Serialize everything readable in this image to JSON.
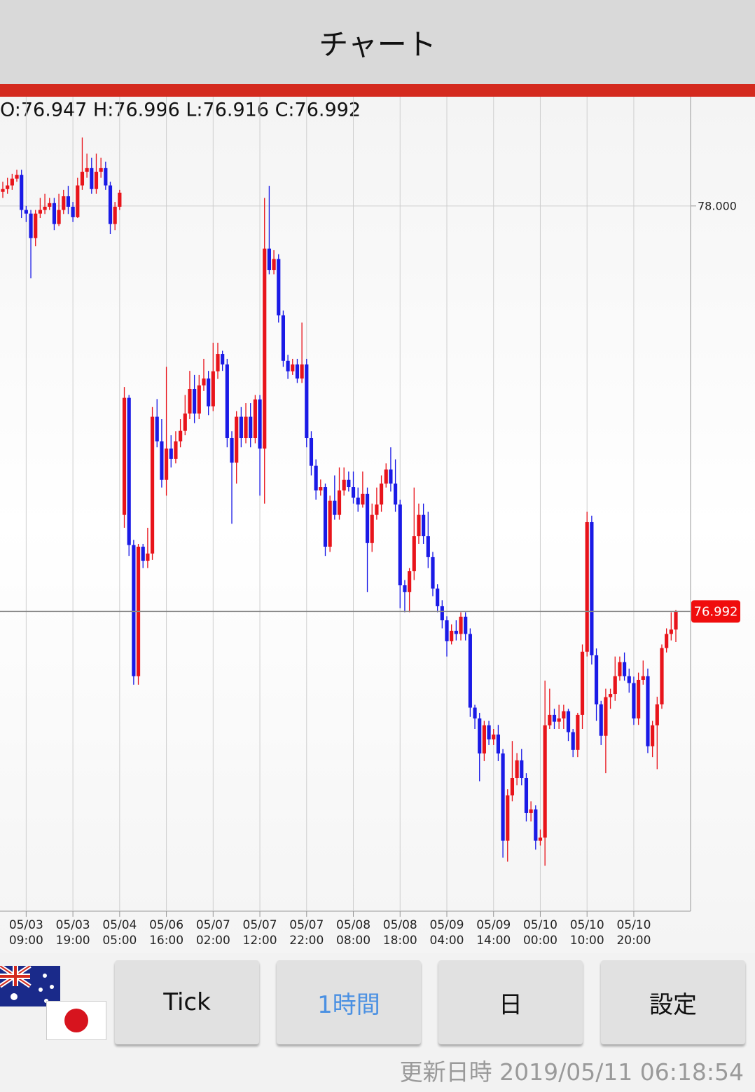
{
  "header": {
    "title": "チャート"
  },
  "chart_data": {
    "type": "candlestick",
    "ohlc_label": "O:76.947 H:76.996 L:76.916 C:76.992",
    "categories": [
      null,
      null,
      null,
      null,
      null,
      "05/03\n09:00",
      null,
      null,
      null,
      null,
      null,
      null,
      null,
      null,
      null,
      "05/03\n19:00",
      null,
      null,
      null,
      null,
      null,
      null,
      null,
      null,
      null,
      "05/04\n05:00",
      null,
      null,
      null,
      null,
      null,
      null,
      null,
      null,
      null,
      "05/06\n16:00",
      null,
      null,
      null,
      null,
      null,
      null,
      null,
      null,
      null,
      "05/07\n02:00",
      null,
      null,
      null,
      null,
      null,
      null,
      null,
      null,
      null,
      "05/07\n12:00",
      null,
      null,
      null,
      null,
      null,
      null,
      null,
      null,
      null,
      "05/07\n22:00",
      null,
      null,
      null,
      null,
      null,
      null,
      null,
      null,
      null,
      "05/08\n08:00",
      null,
      null,
      null,
      null,
      null,
      null,
      null,
      null,
      null,
      "05/08\n18:00",
      null,
      null,
      null,
      null,
      null,
      null,
      null,
      null,
      null,
      "05/09\n04:00",
      null,
      null,
      null,
      null,
      null,
      null,
      null,
      null,
      null,
      "05/09\n14:00",
      null,
      null,
      null,
      null,
      null,
      null,
      null,
      null,
      null,
      "05/10\n00:00",
      null,
      null,
      null,
      null,
      null,
      null,
      null,
      null,
      null,
      "05/10\n10:00",
      null,
      null,
      null,
      null,
      null,
      null,
      null,
      null,
      null,
      "05/10\n20:00",
      null,
      null,
      null,
      null,
      null,
      null,
      null,
      null,
      null
    ],
    "open": [
      78.035,
      78.042,
      78.051,
      78.068,
      78.077,
      77.99,
      77.981,
      77.92,
      77.981,
      77.99,
      77.998,
      78.007,
      77.955,
      77.99,
      78.024,
      77.998,
      77.972,
      78.051,
      78.085,
      78.094,
      78.042,
      78.085,
      78.094,
      78.051,
      77.955,
      77.998,
      77.232,
      77.523,
      77.157,
      76.831,
      77.153,
      77.118,
      77.136,
      77.476,
      77.415,
      77.319,
      77.397,
      77.371,
      77.415,
      77.441,
      77.484,
      77.545,
      77.484,
      77.554,
      77.571,
      77.502,
      77.589,
      77.632,
      77.606,
      77.423,
      77.362,
      77.476,
      77.423,
      77.476,
      77.423,
      77.519,
      77.397,
      77.894,
      77.841,
      77.868,
      77.728,
      77.615,
      77.589,
      77.606,
      77.571,
      77.606,
      77.423,
      77.354,
      77.293,
      77.301,
      77.153,
      77.267,
      77.232,
      77.293,
      77.319,
      77.301,
      77.275,
      77.258,
      77.284,
      77.162,
      77.232,
      77.258,
      77.31,
      77.345,
      77.31,
      77.258,
      77.057,
      77.04,
      77.092,
      77.179,
      77.232,
      77.179,
      77.127,
      77.049,
      77.005,
      76.97,
      76.918,
      76.944,
      76.936,
      76.979,
      76.936,
      76.753,
      76.726,
      76.639,
      76.709,
      76.674,
      76.686,
      76.639,
      76.422,
      76.535,
      76.578,
      76.622,
      76.578,
      76.491,
      76.5,
      76.422,
      76.43,
      76.709,
      76.735,
      76.718,
      76.726,
      76.744,
      76.692,
      76.648,
      76.735,
      76.892,
      77.214,
      76.883,
      76.761,
      76.683,
      76.779,
      76.787,
      76.831,
      76.866,
      76.831,
      76.814,
      76.726,
      76.822,
      76.831,
      76.657,
      76.709,
      76.761,
      76.901,
      76.936,
      76.947
    ],
    "high": [
      78.06,
      78.07,
      78.08,
      78.09,
      78.09,
      78.0,
      77.99,
      77.99,
      78.02,
      78.03,
      78.02,
      78.02,
      78.03,
      78.04,
      78.05,
      78.01,
      78.07,
      78.17,
      78.13,
      78.12,
      78.13,
      78.12,
      78.11,
      78.06,
      78.01,
      78.04,
      77.55,
      77.53,
      77.17,
      77.16,
      77.16,
      77.2,
      77.5,
      77.52,
      77.47,
      77.6,
      77.43,
      77.44,
      77.47,
      77.53,
      77.59,
      77.58,
      77.58,
      77.62,
      77.59,
      77.66,
      77.66,
      77.64,
      77.62,
      77.44,
      77.49,
      77.5,
      77.51,
      77.51,
      77.53,
      77.53,
      78.02,
      78.05,
      77.89,
      77.88,
      77.74,
      77.63,
      77.62,
      77.62,
      77.71,
      77.62,
      77.44,
      77.37,
      77.32,
      77.31,
      77.28,
      77.33,
      77.35,
      77.35,
      77.34,
      77.34,
      77.3,
      77.34,
      77.3,
      77.26,
      77.3,
      77.33,
      77.36,
      77.4,
      77.37,
      77.27,
      77.07,
      77.1,
      77.3,
      77.26,
      77.26,
      77.24,
      77.14,
      77.06,
      77.02,
      76.98,
      76.96,
      76.97,
      76.99,
      76.99,
      76.95,
      76.76,
      76.74,
      76.72,
      76.72,
      76.7,
      76.71,
      76.65,
      76.55,
      76.67,
      76.64,
      76.65,
      76.59,
      76.52,
      76.51,
      76.45,
      76.82,
      76.8,
      76.75,
      76.76,
      76.76,
      76.75,
      76.7,
      76.74,
      76.91,
      77.24,
      77.23,
      76.9,
      76.77,
      76.8,
      76.8,
      76.88,
      76.88,
      76.89,
      76.85,
      76.83,
      76.84,
      76.87,
      76.85,
      76.72,
      76.78,
      76.91,
      76.95,
      76.99,
      76.996
    ],
    "low": [
      78.02,
      78.03,
      78.04,
      78.06,
      77.97,
      77.96,
      77.82,
      77.9,
      77.97,
      77.98,
      77.99,
      77.94,
      77.95,
      77.98,
      77.98,
      77.96,
      77.97,
      78.04,
      78.07,
      78.03,
      78.03,
      78.07,
      78.04,
      77.93,
      77.94,
      77.99,
      77.2,
      77.13,
      76.81,
      76.81,
      77.1,
      77.1,
      77.12,
      77.4,
      77.3,
      77.28,
      77.35,
      77.36,
      77.4,
      77.43,
      77.47,
      77.46,
      77.47,
      77.54,
      77.48,
      77.49,
      77.57,
      77.59,
      77.4,
      77.21,
      77.31,
      77.4,
      77.41,
      77.4,
      77.41,
      77.28,
      77.26,
      77.83,
      77.83,
      77.71,
      77.6,
      77.57,
      77.58,
      77.56,
      77.56,
      77.4,
      77.33,
      77.27,
      77.28,
      77.13,
      77.14,
      77.22,
      77.22,
      77.28,
      77.29,
      77.26,
      77.24,
      77.25,
      77.04,
      77.14,
      77.22,
      77.24,
      77.3,
      77.29,
      77.24,
      77.0,
      76.99,
      76.99,
      77.07,
      77.16,
      77.16,
      77.1,
      77.03,
      76.99,
      76.95,
      76.88,
      76.91,
      76.92,
      76.92,
      76.92,
      76.73,
      76.7,
      76.57,
      76.62,
      76.66,
      76.66,
      76.62,
      76.38,
      76.37,
      76.52,
      76.56,
      76.56,
      76.47,
      76.47,
      76.4,
      76.41,
      76.36,
      76.7,
      76.7,
      76.7,
      76.7,
      76.67,
      76.63,
      76.63,
      76.7,
      76.88,
      76.86,
      76.72,
      76.66,
      76.59,
      76.75,
      76.77,
      76.82,
      76.82,
      76.79,
      76.71,
      76.71,
      76.81,
      76.64,
      76.63,
      76.6,
      76.75,
      76.89,
      76.92,
      76.916
    ],
    "close": [
      78.042,
      78.051,
      78.068,
      78.077,
      77.99,
      77.981,
      77.92,
      77.981,
      77.99,
      77.998,
      78.007,
      77.955,
      77.99,
      78.024,
      77.998,
      77.972,
      78.051,
      78.085,
      78.094,
      78.042,
      78.085,
      78.094,
      78.051,
      77.955,
      77.998,
      78.033,
      77.523,
      77.157,
      76.831,
      77.153,
      77.118,
      77.136,
      77.476,
      77.415,
      77.319,
      77.397,
      77.371,
      77.415,
      77.441,
      77.484,
      77.545,
      77.484,
      77.554,
      77.571,
      77.502,
      77.589,
      77.632,
      77.606,
      77.423,
      77.362,
      77.476,
      77.423,
      77.476,
      77.423,
      77.519,
      77.397,
      77.894,
      77.841,
      77.868,
      77.728,
      77.615,
      77.589,
      77.606,
      77.571,
      77.606,
      77.423,
      77.354,
      77.293,
      77.301,
      77.153,
      77.267,
      77.232,
      77.293,
      77.319,
      77.301,
      77.275,
      77.258,
      77.284,
      77.162,
      77.232,
      77.258,
      77.31,
      77.345,
      77.31,
      77.258,
      77.057,
      77.04,
      77.092,
      77.179,
      77.232,
      77.179,
      77.127,
      77.049,
      77.005,
      76.97,
      76.918,
      76.944,
      76.936,
      76.979,
      76.936,
      76.753,
      76.726,
      76.639,
      76.709,
      76.674,
      76.686,
      76.639,
      76.422,
      76.535,
      76.578,
      76.622,
      76.578,
      76.491,
      76.5,
      76.422,
      76.43,
      76.709,
      76.735,
      76.718,
      76.726,
      76.744,
      76.692,
      76.648,
      76.735,
      76.892,
      77.214,
      76.883,
      76.761,
      76.683,
      76.779,
      76.787,
      76.831,
      76.866,
      76.831,
      76.814,
      76.726,
      76.822,
      76.831,
      76.657,
      76.709,
      76.761,
      76.901,
      76.936,
      76.947,
      76.992
    ],
    "up_color": "#e8141b",
    "down_color": "#1a1ae6",
    "ylim": [
      76.247,
      78.268
    ],
    "yticks": [
      {
        "value": 78,
        "label": "78.000"
      }
    ],
    "current_price": 76.992,
    "grid": true
  },
  "buttons": [
    "Tick",
    "1時間",
    "日",
    "設定"
  ],
  "footer": {
    "updated": "更新日時 2019/05/11 06:18:54"
  }
}
